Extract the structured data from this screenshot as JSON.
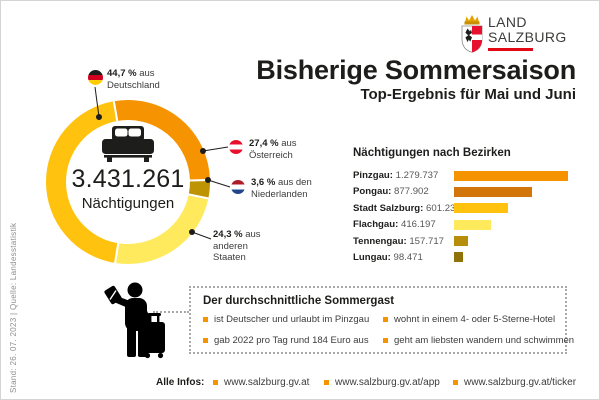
{
  "side_note": "Stand: 26. 07. 2023 | Quelle: Landesstatistik",
  "logo": {
    "line1": "LAND",
    "line2": "SALZBURG",
    "underline_color": "#e30613"
  },
  "header": {
    "title": "Bisherige Sommersaison",
    "subtitle": "Top-Ergebnis für Mai und Juni"
  },
  "chart_data": [
    {
      "type": "pie",
      "style": "donut",
      "center_value": "3.431.261",
      "center_label": "Nächtigungen",
      "legend_position": "around",
      "segments": [
        {
          "label": "Österreich",
          "pct": 27.4,
          "pct_label": "27,4 %",
          "text": "aus Österreich",
          "color": "#F59300",
          "flag": "austria"
        },
        {
          "label": "Niederlande",
          "pct": 3.6,
          "pct_label": "3,6 %",
          "text": "aus den Niederlanden",
          "color": "#BE9405",
          "flag": "netherlands"
        },
        {
          "label": "andere Staaten",
          "pct": 24.3,
          "pct_label": "24,3 %",
          "text": "aus anderen Staaten",
          "color": "#FFE95C",
          "flag": null
        },
        {
          "label": "Deutschland",
          "pct": 44.7,
          "pct_label": "44,7 %",
          "text": "aus Deutschland",
          "color": "#FFC20E",
          "flag": "germany"
        }
      ]
    },
    {
      "type": "bar",
      "title": "Nächtigungen nach Bezirken",
      "orientation": "horizontal",
      "categories": [
        "Pinzgau",
        "Pongau",
        "Stadt Salzburg",
        "Flachgau",
        "Tennengau",
        "Lungau"
      ],
      "values": [
        1279737,
        877902,
        601237,
        416197,
        157717,
        98471
      ],
      "value_labels": [
        "1.279.737",
        "877.902",
        "601.237",
        "416.197",
        "157.717",
        "98.471"
      ],
      "colors": [
        "#F59300",
        "#D2750B",
        "#FFC20E",
        "#FFE95C",
        "#B68E0B",
        "#8F7309"
      ],
      "xlim": [
        0,
        1279737
      ],
      "grid": false
    }
  ],
  "infobox": {
    "title": "Der durchschnittliche Sommergast",
    "bullets": [
      "ist Deutscher und urlaubt im Pinzgau",
      "wohnt in einem 4- oder 5-Sterne-Hotel",
      "gab 2022 pro Tag rund 184 Euro aus",
      "geht am liebsten wandern und schwimmen"
    ]
  },
  "footer": {
    "label": "Alle Infos:",
    "links": [
      "www.salzburg.gv.at",
      "www.salzburg.gv.at/app",
      "www.salzburg.gv.at/ticker"
    ]
  },
  "colors": {
    "accent_orange": "#F59300",
    "gold": "#FFC20E",
    "dark_gold": "#BE9405",
    "light_yellow": "#FFE95C",
    "logo_red": "#e30613",
    "text_dark": "#1d1d1b"
  }
}
